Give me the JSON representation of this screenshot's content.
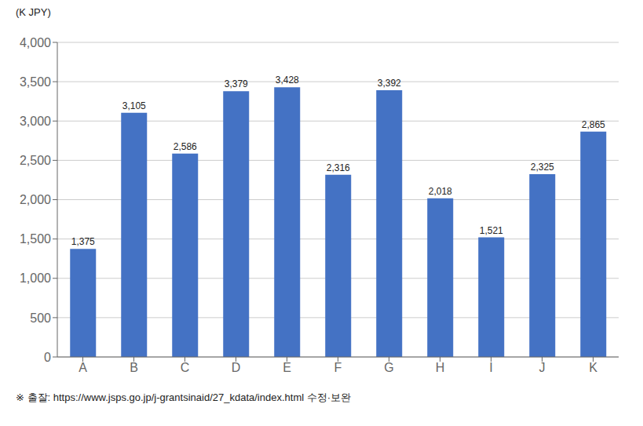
{
  "chart_data": {
    "type": "bar",
    "y_label": "(K JPY)",
    "annotations": [
      "※ 출잘:  https://www.jsps.go.jp/j-grantsinaid/27_kdata/index.html  수정·보완"
    ],
    "categories": [
      "A",
      "B",
      "C",
      "D",
      "E",
      "F",
      "G",
      "H",
      "I",
      "J",
      "K"
    ],
    "values": [
      1375,
      3105,
      2586,
      3379,
      3428,
      2316,
      3392,
      2018,
      1521,
      2325,
      2865
    ],
    "value_labels": [
      "1,375",
      "3,105",
      "2,586",
      "3,379",
      "3,428",
      "2,316",
      "3,392",
      "2,018",
      "1,521",
      "2,325",
      "2,865"
    ],
    "data_labels": true,
    "color": "#4472C4",
    "ylim": [
      0,
      4000
    ],
    "yticks": [
      0,
      500,
      {
        "value": 1000,
        "label": "1,000"
      },
      {
        "value": 1500,
        "label": "1,500"
      },
      {
        "value": 2000,
        "label": "2,000"
      },
      {
        "value": 2500,
        "label": "2,500"
      },
      {
        "value": 3000,
        "label": "3,000"
      },
      {
        "value": 3500,
        "label": "3,500"
      },
      {
        "value": 4000,
        "label": "4,000"
      }
    ],
    "grid": true
  }
}
